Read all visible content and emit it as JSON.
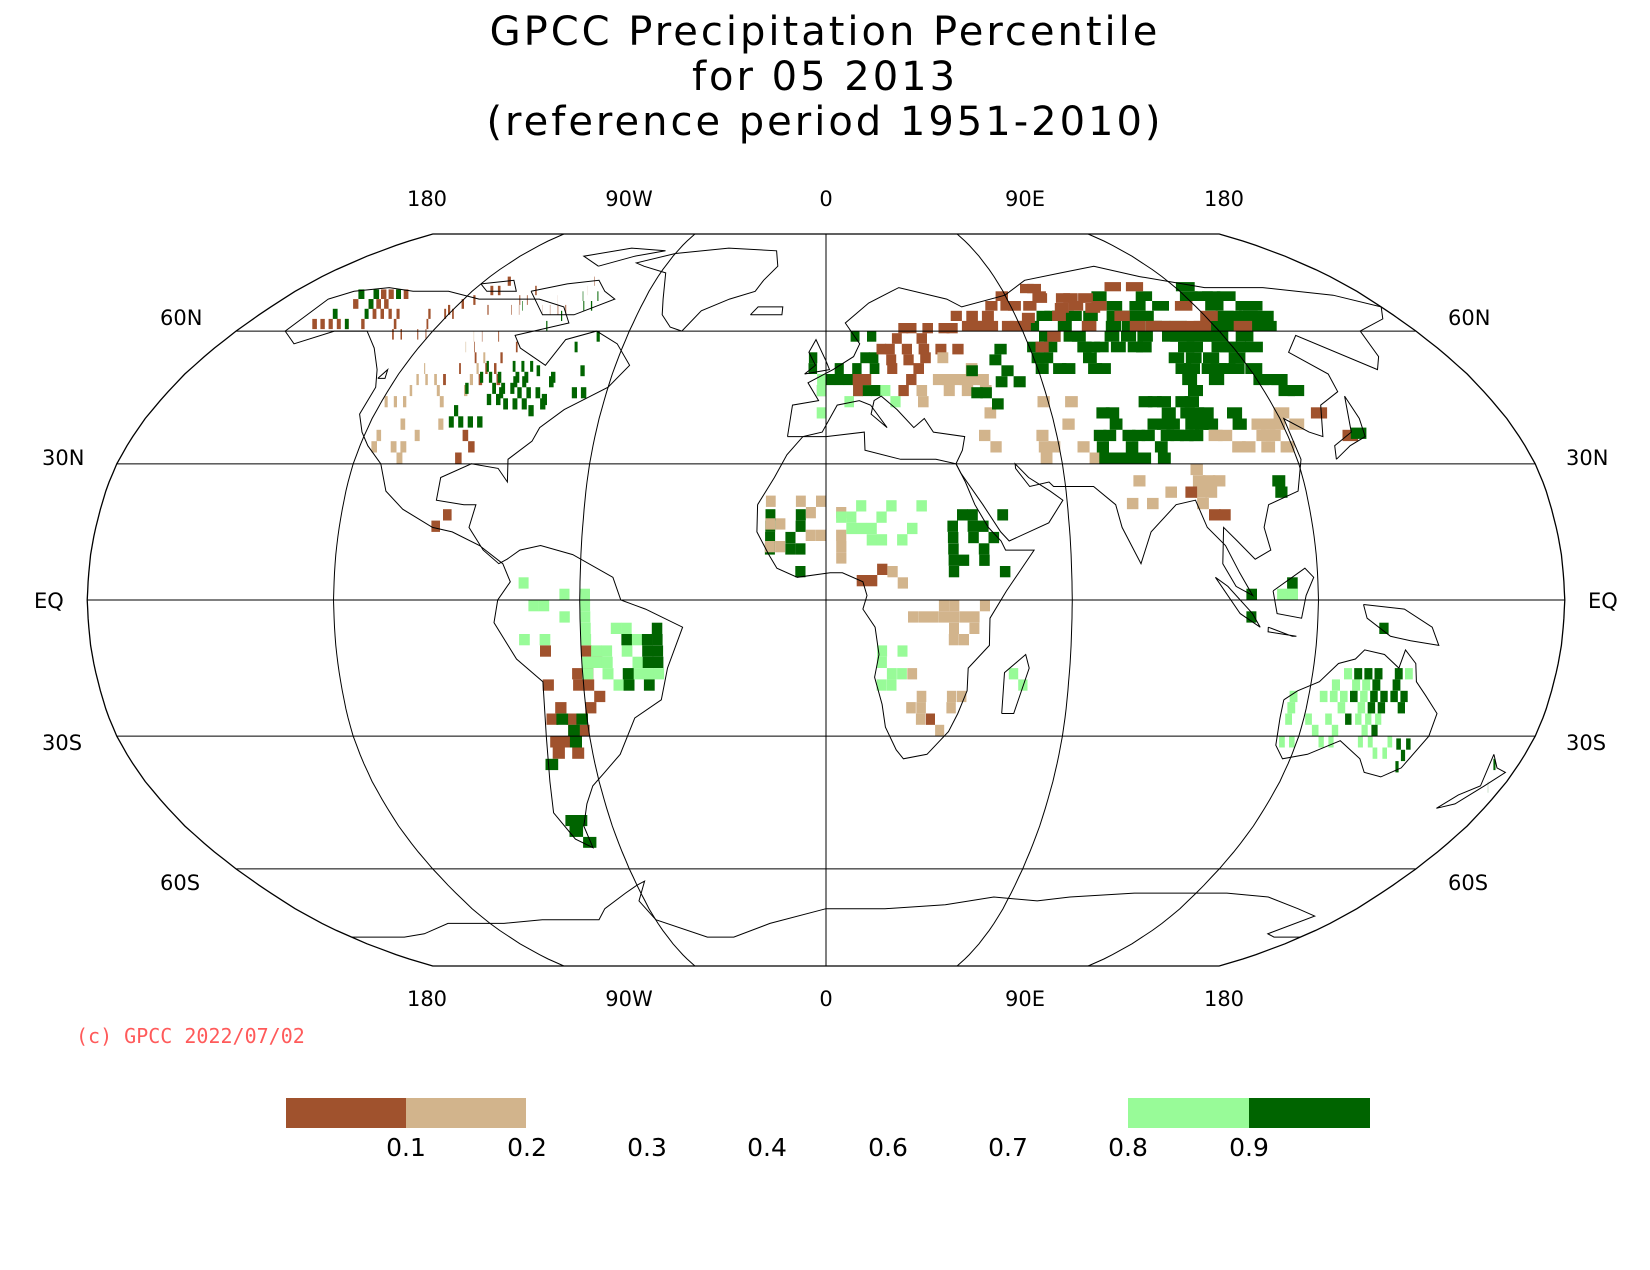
{
  "title": {
    "line1": "GPCC Precipitation Percentile",
    "line2": "for 05 2013",
    "line3": "(reference period 1951-2010)"
  },
  "map": {
    "projection": "Robinson",
    "central_longitude": 0,
    "longitude_labels_top": [
      "180",
      "90W",
      "0",
      "90E",
      "180"
    ],
    "longitude_labels_bottom": [
      "180",
      "90W",
      "0",
      "90E",
      "180"
    ],
    "latitude_labels": [
      "60N",
      "30N",
      "EQ",
      "30S",
      "60S"
    ]
  },
  "copyright": "(c) GPCC 2022/07/02",
  "colors": {
    "very_dry": "#a0522d",
    "dry": "#d2b48c",
    "wet": "#98fb98",
    "very_wet": "#006400",
    "grid": "#000000",
    "coast": "#000000",
    "copyright_text": "#ff5a5a"
  },
  "legend": {
    "categories": [
      {
        "range": "< 0.1",
        "color": "#a0522d"
      },
      {
        "range": "0.1 - 0.2",
        "color": "#d2b48c"
      },
      {
        "range": "0.2 - 0.3",
        "color": "#ffffff"
      },
      {
        "range": "0.3 - 0.4",
        "color": "#ffffff"
      },
      {
        "range": "0.4 - 0.6",
        "color": "#ffffff"
      },
      {
        "range": "0.6 - 0.7",
        "color": "#ffffff"
      },
      {
        "range": "0.7 - 0.8",
        "color": "#ffffff"
      },
      {
        "range": "0.8 - 0.9",
        "color": "#98fb98"
      },
      {
        "range": "> 0.9",
        "color": "#006400"
      }
    ],
    "tick_labels": [
      "0.1",
      "0.2",
      "0.3",
      "0.4",
      "0.6",
      "0.7",
      "0.8",
      "0.9"
    ]
  }
}
